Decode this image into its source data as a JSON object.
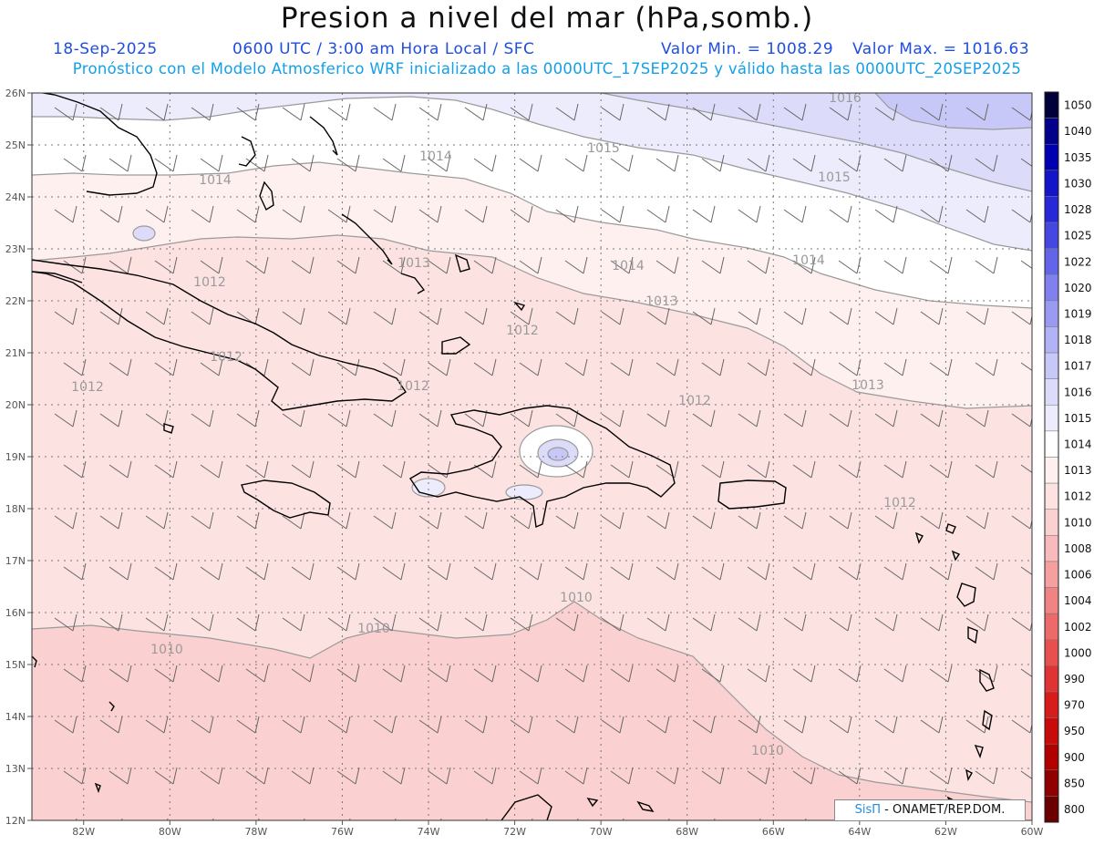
{
  "header": {
    "title": "Presion a nivel del mar (hPa,somb.)",
    "date": "18-Sep-2025",
    "time_info": "0600 UTC / 3:00 am Hora Local / SFC",
    "min_value": "Valor Min. = 1008.29",
    "max_value": "Valor Max. = 1016.63",
    "subtitle": "Pronóstico con el Modelo Atmosferico WRF inicializado a las 0000UTC_17SEP2025 y válido hasta las  0000UTC_20SEP2025"
  },
  "map": {
    "lat_labels": [
      "26N",
      "25N",
      "24N",
      "23N",
      "22N",
      "21N",
      "20N",
      "19N",
      "18N",
      "17N",
      "16N",
      "15N",
      "14N",
      "13N",
      "12N"
    ],
    "lon_labels": [
      "82W",
      "80W",
      "78W",
      "76W",
      "74W",
      "72W",
      "70W",
      "68W",
      "66W",
      "64W",
      "62W",
      "60W"
    ],
    "isobar_labels": [
      "1016",
      "1015",
      "1015",
      "1014",
      "1014",
      "1014",
      "1014",
      "1013",
      "1013",
      "1013",
      "1012",
      "1012",
      "1012",
      "1012",
      "1012",
      "1012",
      "1012",
      "1010",
      "1010",
      "1010",
      "1010"
    ]
  },
  "colorbar": {
    "levels": [
      "1050",
      "1040",
      "1035",
      "1030",
      "1028",
      "1025",
      "1022",
      "1020",
      "1019",
      "1018",
      "1017",
      "1016",
      "1015",
      "1014",
      "1013",
      "1012",
      "1010",
      "1008",
      "1006",
      "1004",
      "1002",
      "1000",
      "990",
      "970",
      "950",
      "900",
      "850",
      "800"
    ],
    "colors": [
      "#00003a",
      "#00008a",
      "#0000b0",
      "#1414c8",
      "#2828d8",
      "#4646e0",
      "#6464e8",
      "#8080ee",
      "#9a9af2",
      "#b2b2f6",
      "#c8c8f8",
      "#dcdcfa",
      "#ececfc",
      "#ffffff",
      "#fff0f0",
      "#fde2e2",
      "#fbd0d0",
      "#f8baba",
      "#f4a0a0",
      "#f08484",
      "#ec6a6a",
      "#e85050",
      "#e03434",
      "#d81c1c",
      "#c80a0a",
      "#b00000",
      "#900000",
      "#6a0000"
    ]
  },
  "credit": {
    "brand": "SisΠ",
    "text": " - ONAMET/REP.DOM."
  }
}
